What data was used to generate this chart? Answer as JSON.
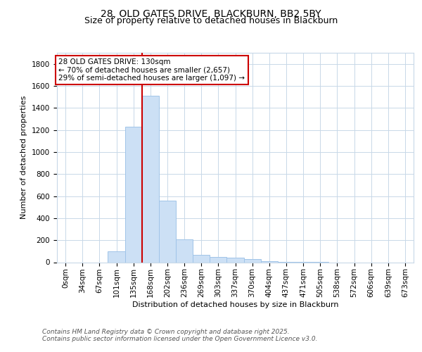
{
  "title_line1": "28, OLD GATES DRIVE, BLACKBURN, BB2 5BY",
  "title_line2": "Size of property relative to detached houses in Blackburn",
  "xlabel": "Distribution of detached houses by size in Blackburn",
  "ylabel": "Number of detached properties",
  "bar_labels": [
    "0sqm",
    "34sqm",
    "67sqm",
    "101sqm",
    "135sqm",
    "168sqm",
    "202sqm",
    "236sqm",
    "269sqm",
    "303sqm",
    "337sqm",
    "370sqm",
    "404sqm",
    "437sqm",
    "471sqm",
    "505sqm",
    "538sqm",
    "572sqm",
    "606sqm",
    "639sqm",
    "673sqm"
  ],
  "bar_values": [
    0,
    0,
    0,
    100,
    1230,
    1510,
    560,
    210,
    65,
    50,
    40,
    28,
    10,
    3,
    2,
    1,
    0,
    0,
    0,
    0,
    0
  ],
  "bar_color": "#cce0f5",
  "bar_edgecolor": "#a0c4e8",
  "vline_x": 4.5,
  "annotation_text": "28 OLD GATES DRIVE: 130sqm\n← 70% of detached houses are smaller (2,657)\n29% of semi-detached houses are larger (1,097) →",
  "annotation_box_color": "#ffffff",
  "annotation_box_edgecolor": "#cc0000",
  "vline_color": "#cc0000",
  "ylim": [
    0,
    1900
  ],
  "yticks": [
    0,
    200,
    400,
    600,
    800,
    1000,
    1200,
    1400,
    1600,
    1800
  ],
  "footnote1": "Contains HM Land Registry data © Crown copyright and database right 2025.",
  "footnote2": "Contains public sector information licensed under the Open Government Licence v3.0.",
  "background_color": "#ffffff",
  "grid_color": "#c8d8e8",
  "title1_fontsize": 10,
  "title2_fontsize": 9,
  "ylabel_fontsize": 8,
  "xlabel_fontsize": 8,
  "tick_fontsize": 7.5,
  "annot_fontsize": 7.5,
  "footnote_fontsize": 6.5
}
